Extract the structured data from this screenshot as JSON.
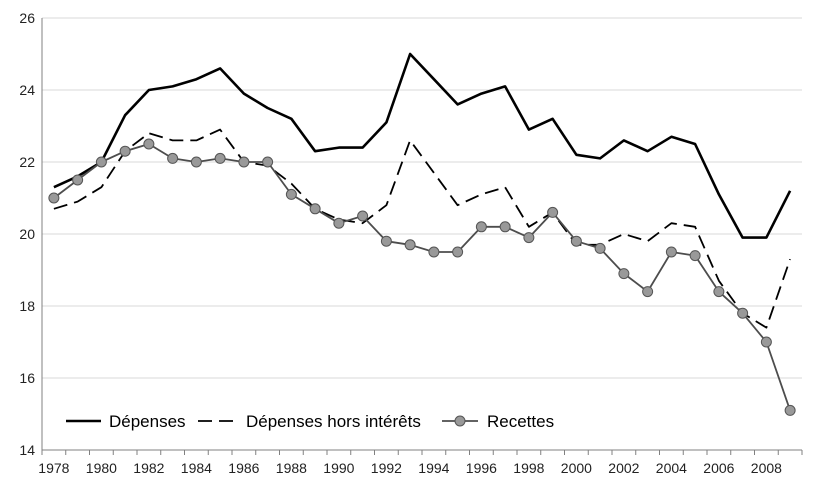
{
  "chart_data": {
    "type": "line",
    "title": "",
    "xlabel": "",
    "ylabel": "",
    "x": [
      1978,
      1979,
      1980,
      1981,
      1982,
      1983,
      1984,
      1985,
      1986,
      1987,
      1988,
      1989,
      1990,
      1991,
      1992,
      1993,
      1994,
      1995,
      1996,
      1997,
      1998,
      1999,
      2000,
      2001,
      2002,
      2003,
      2004,
      2005,
      2006,
      2007,
      2008,
      2009
    ],
    "x_ticks": [
      "1978",
      "1980",
      "1982",
      "1984",
      "1986",
      "1988",
      "1990",
      "1992",
      "1994",
      "1996",
      "1998",
      "2000",
      "2002",
      "2004",
      "2006",
      "2008"
    ],
    "xlim": [
      1977.5,
      2009.5
    ],
    "ylim": [
      14,
      26
    ],
    "y_ticks": [
      "14",
      "16",
      "18",
      "20",
      "22",
      "24",
      "26"
    ],
    "grid": "horizontal",
    "legend_position": "bottom-left",
    "series": [
      {
        "name": "Dépenses",
        "style": "solid",
        "color": "#000000",
        "values": [
          21.3,
          21.6,
          22.0,
          23.3,
          24.0,
          24.1,
          24.3,
          24.6,
          23.9,
          23.5,
          23.2,
          22.3,
          22.4,
          22.4,
          23.1,
          25.0,
          24.3,
          23.6,
          23.9,
          24.1,
          22.9,
          23.2,
          22.2,
          22.1,
          22.6,
          22.3,
          22.7,
          22.5,
          21.1,
          19.9,
          19.9,
          21.2
        ]
      },
      {
        "name": "Dépenses hors intérêts",
        "style": "dashed",
        "color": "#000000",
        "values": [
          20.7,
          20.9,
          21.3,
          22.3,
          22.8,
          22.6,
          22.6,
          22.9,
          22.0,
          21.9,
          21.4,
          20.7,
          20.4,
          20.3,
          20.8,
          22.6,
          21.7,
          20.8,
          21.1,
          21.3,
          20.2,
          20.6,
          19.7,
          19.7,
          20.0,
          19.8,
          20.3,
          20.2,
          18.7,
          17.8,
          17.4,
          19.3
        ]
      },
      {
        "name": "Recettes",
        "style": "solid-markers",
        "color": "#4d4d4d",
        "marker_color": "#999999",
        "values": [
          21.0,
          21.5,
          22.0,
          22.3,
          22.5,
          22.1,
          22.0,
          22.1,
          22.0,
          22.0,
          21.1,
          20.7,
          20.3,
          20.5,
          19.8,
          19.7,
          19.5,
          19.5,
          20.2,
          20.2,
          19.9,
          20.6,
          19.8,
          19.6,
          18.9,
          18.4,
          19.5,
          19.4,
          18.4,
          17.8,
          17.0,
          15.1
        ]
      }
    ]
  }
}
